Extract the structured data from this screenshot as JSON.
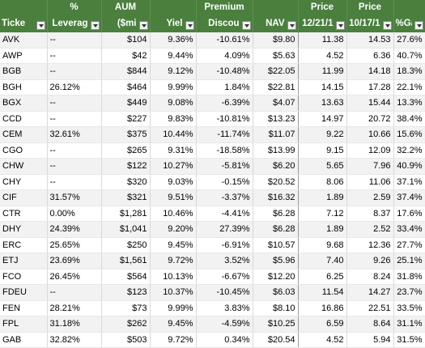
{
  "columns": {
    "ticker": {
      "top": "",
      "bottom": "Ticke"
    },
    "leverage": {
      "top": "%",
      "bottom": "Leverag"
    },
    "aum": {
      "top": "AUM",
      "bottom": "($mi"
    },
    "yield": {
      "top": "",
      "bottom": "Yiel"
    },
    "premium": {
      "top": "Premium",
      "bottom": "Discou"
    },
    "nav": {
      "top": "",
      "bottom": "NAV"
    },
    "price1": {
      "top": "Price",
      "bottom": "12/21/1"
    },
    "price2": {
      "top": "Price",
      "bottom": "10/17/1"
    },
    "gain": {
      "top": "",
      "bottom": "%Gai"
    }
  },
  "rows": [
    {
      "ticker": "AVK",
      "leverage": "--",
      "aum": "$104",
      "yield": "9.36%",
      "premium": "-10.61%",
      "nav": "$9.80",
      "price1": "11.38",
      "price2": "14.53",
      "gain": "27.6%"
    },
    {
      "ticker": "AWP",
      "leverage": "--",
      "aum": "$42",
      "yield": "9.44%",
      "premium": "4.09%",
      "nav": "$5.63",
      "price1": "4.52",
      "price2": "6.36",
      "gain": "40.7%"
    },
    {
      "ticker": "BGB",
      "leverage": "--",
      "aum": "$844",
      "yield": "9.12%",
      "premium": "-10.48%",
      "nav": "$22.05",
      "price1": "11.99",
      "price2": "14.18",
      "gain": "18.3%"
    },
    {
      "ticker": "BGH",
      "leverage": "26.12%",
      "aum": "$464",
      "yield": "9.99%",
      "premium": "1.84%",
      "nav": "$22.81",
      "price1": "14.15",
      "price2": "17.28",
      "gain": "22.1%"
    },
    {
      "ticker": "BGX",
      "leverage": "--",
      "aum": "$449",
      "yield": "9.08%",
      "premium": "-6.39%",
      "nav": "$4.07",
      "price1": "13.63",
      "price2": "15.44",
      "gain": "13.3%"
    },
    {
      "ticker": "CCD",
      "leverage": "--",
      "aum": "$227",
      "yield": "9.83%",
      "premium": "-10.81%",
      "nav": "$13.23",
      "price1": "14.97",
      "price2": "20.72",
      "gain": "38.4%"
    },
    {
      "ticker": "CEM",
      "leverage": "32.61%",
      "aum": "$375",
      "yield": "10.44%",
      "premium": "-11.74%",
      "nav": "$11.07",
      "price1": "9.22",
      "price2": "10.66",
      "gain": "15.6%"
    },
    {
      "ticker": "CGO",
      "leverage": "--",
      "aum": "$265",
      "yield": "9.31%",
      "premium": "-18.58%",
      "nav": "$13.99",
      "price1": "9.15",
      "price2": "12.09",
      "gain": "32.2%"
    },
    {
      "ticker": "CHW",
      "leverage": "--",
      "aum": "$122",
      "yield": "10.27%",
      "premium": "-5.81%",
      "nav": "$6.20",
      "price1": "5.65",
      "price2": "7.96",
      "gain": "40.9%"
    },
    {
      "ticker": "CHY",
      "leverage": "--",
      "aum": "$320",
      "yield": "9.03%",
      "premium": "-0.15%",
      "nav": "$20.52",
      "price1": "8.06",
      "price2": "11.06",
      "gain": "37.1%"
    },
    {
      "ticker": "CIF",
      "leverage": "31.57%",
      "aum": "$321",
      "yield": "9.51%",
      "premium": "-3.37%",
      "nav": "$16.32",
      "price1": "1.89",
      "price2": "2.59",
      "gain": "37.4%"
    },
    {
      "ticker": "CTR",
      "leverage": "0.00%",
      "aum": "$1,281",
      "yield": "10.46%",
      "premium": "-4.41%",
      "nav": "$6.28",
      "price1": "7.12",
      "price2": "8.37",
      "gain": "17.6%"
    },
    {
      "ticker": "DHY",
      "leverage": "24.39%",
      "aum": "$1,041",
      "yield": "9.20%",
      "premium": "27.39%",
      "nav": "$6.28",
      "price1": "1.89",
      "price2": "2.52",
      "gain": "33.4%"
    },
    {
      "ticker": "ERC",
      "leverage": "25.65%",
      "aum": "$250",
      "yield": "9.45%",
      "premium": "-6.91%",
      "nav": "$10.57",
      "price1": "9.68",
      "price2": "12.36",
      "gain": "27.7%"
    },
    {
      "ticker": "ETJ",
      "leverage": "23.69%",
      "aum": "$1,561",
      "yield": "9.72%",
      "premium": "3.52%",
      "nav": "$5.96",
      "price1": "7.40",
      "price2": "9.26",
      "gain": "25.1%"
    },
    {
      "ticker": "FCO",
      "leverage": "26.45%",
      "aum": "$564",
      "yield": "10.13%",
      "premium": "-6.67%",
      "nav": "$12.20",
      "price1": "6.25",
      "price2": "8.24",
      "gain": "31.8%"
    },
    {
      "ticker": "FDEU",
      "leverage": "--",
      "aum": "$123",
      "yield": "10.37%",
      "premium": "-10.45%",
      "nav": "$6.03",
      "price1": "11.54",
      "price2": "14.27",
      "gain": "23.7%"
    },
    {
      "ticker": "FEN",
      "leverage": "28.21%",
      "aum": "$73",
      "yield": "9.99%",
      "premium": "3.83%",
      "nav": "$8.10",
      "price1": "16.86",
      "price2": "22.51",
      "gain": "33.5%"
    },
    {
      "ticker": "FPL",
      "leverage": "31.18%",
      "aum": "$262",
      "yield": "9.45%",
      "premium": "-4.59%",
      "nav": "$10.25",
      "price1": "6.59",
      "price2": "8.64",
      "gain": "31.1%"
    },
    {
      "ticker": "GAB",
      "leverage": "32.82%",
      "aum": "$503",
      "yield": "9.72%",
      "premium": "0.34%",
      "nav": "$20.54",
      "price1": "4.52",
      "price2": "5.94",
      "gain": "31.5%"
    }
  ],
  "colors": {
    "header_bg": "#4a7f3e",
    "header_text": "#ffffff",
    "band": "#f2f2f2"
  }
}
